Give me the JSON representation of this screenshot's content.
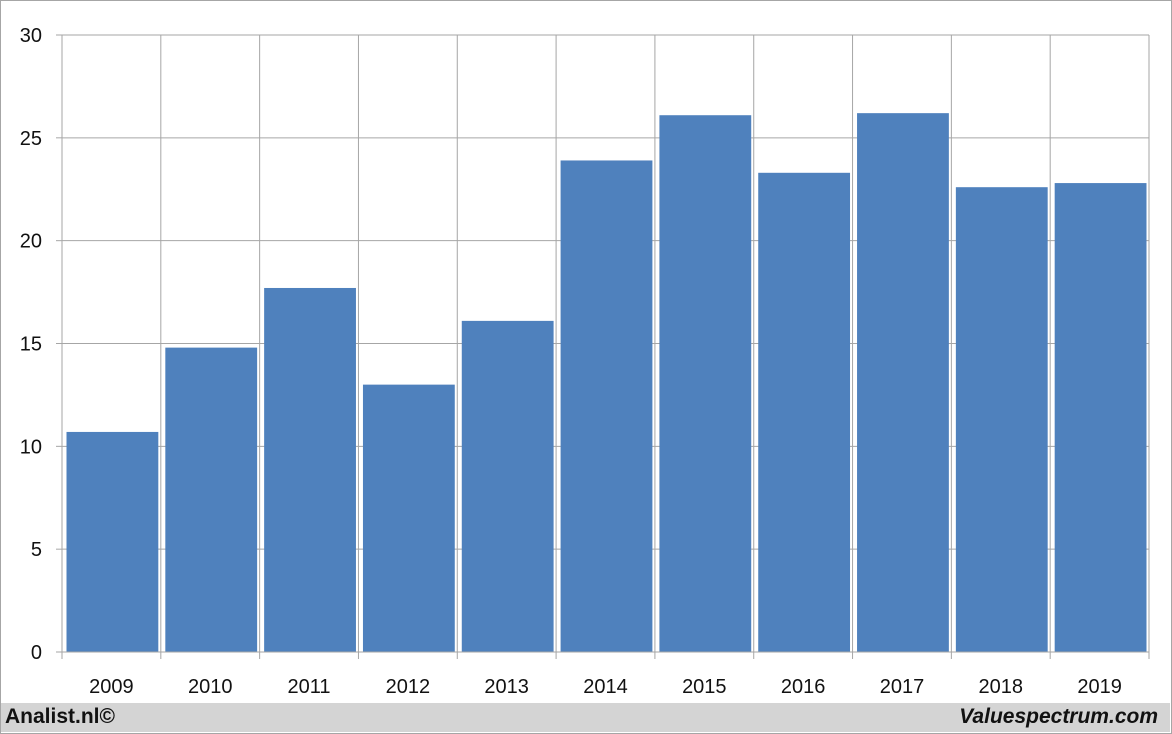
{
  "chart_data": {
    "type": "bar",
    "categories": [
      "2009",
      "2010",
      "2011",
      "2012",
      "2013",
      "2014",
      "2015",
      "2016",
      "2017",
      "2018",
      "2019"
    ],
    "values": [
      10.7,
      14.8,
      17.7,
      13.0,
      16.1,
      23.9,
      26.1,
      23.3,
      26.2,
      22.6,
      22.8
    ],
    "yticks": [
      "0",
      "5",
      "10",
      "15",
      "20",
      "25",
      "30"
    ],
    "ylim": [
      0,
      30
    ],
    "grid": true,
    "legend": "none",
    "bar_color": "#4f81bd",
    "grid_color": "#a6a6a6"
  },
  "footer": {
    "left_text": "Analist.nl©",
    "right_text": "Valuespectrum.com",
    "background": "#d4d4d4"
  }
}
